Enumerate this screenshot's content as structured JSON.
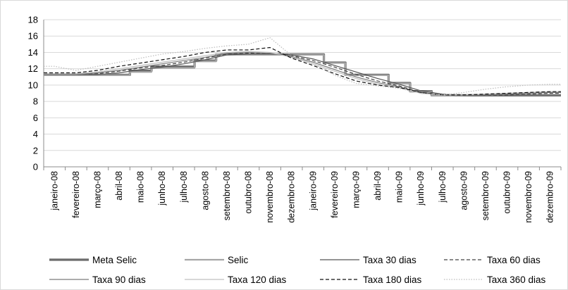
{
  "chart_data": {
    "type": "line",
    "title": "",
    "xlabel": "",
    "ylabel": "",
    "ylim": [
      0,
      18
    ],
    "yticks": [
      "0",
      "2",
      "4",
      "6",
      "8",
      "10",
      "12",
      "14",
      "16",
      "18"
    ],
    "grid": true,
    "legend_position": "bottom",
    "categories": [
      "janeiro-08",
      "fevereiro-08",
      "março-08",
      "abril-08",
      "maio-08",
      "junho-08",
      "julho-08",
      "agosto-08",
      "setembro-08",
      "outubro-08",
      "novembro-08",
      "dezembro-08",
      "janeiro-09",
      "fevereiro-09",
      "março-09",
      "abril-09",
      "maio-09",
      "junho-09",
      "julho-09",
      "agosto-09",
      "setembro-09",
      "outubro-09",
      "novembro-09",
      "dezembro-09"
    ],
    "series": [
      {
        "name": "Meta Selic",
        "color": "#6b6b6b",
        "style": "step",
        "values": [
          11.25,
          11.25,
          11.25,
          11.25,
          11.75,
          12.25,
          12.25,
          13.0,
          13.75,
          13.75,
          13.75,
          13.75,
          13.75,
          12.75,
          11.25,
          11.25,
          10.25,
          9.25,
          8.75,
          8.75,
          8.75,
          8.75,
          8.75,
          8.75
        ]
      },
      {
        "name": "Selic",
        "color": "#a6a6a6",
        "style": "step",
        "values": [
          11.2,
          11.2,
          11.2,
          11.2,
          11.6,
          12.1,
          12.1,
          12.9,
          13.7,
          13.7,
          13.7,
          13.7,
          13.7,
          12.7,
          11.2,
          11.2,
          10.2,
          9.2,
          8.7,
          8.7,
          8.7,
          8.7,
          8.7,
          8.7
        ]
      },
      {
        "name": "Taxa 30 dias",
        "color": "#555555",
        "style": "solid",
        "values": [
          11.3,
          11.3,
          11.3,
          11.5,
          11.9,
          12.2,
          12.6,
          13.1,
          13.7,
          13.8,
          13.8,
          13.7,
          13.2,
          12.4,
          11.6,
          10.8,
          10.1,
          9.3,
          8.9,
          8.7,
          8.7,
          8.7,
          8.7,
          8.7
        ]
      },
      {
        "name": "Taxa 60 dias",
        "color": "#444444",
        "style": "dashed",
        "values": [
          11.3,
          11.3,
          11.4,
          11.7,
          12.1,
          12.4,
          12.8,
          13.3,
          13.8,
          13.9,
          13.9,
          13.6,
          13.0,
          12.2,
          11.3,
          10.5,
          9.9,
          9.1,
          8.8,
          8.7,
          8.8,
          8.8,
          8.9,
          9.0
        ]
      },
      {
        "name": "Taxa 90 dias",
        "color": "#7a7a7a",
        "style": "solid",
        "values": [
          11.3,
          11.3,
          11.5,
          11.8,
          12.2,
          12.6,
          13.0,
          13.4,
          13.9,
          14.0,
          13.9,
          13.5,
          12.8,
          11.9,
          11.0,
          10.3,
          9.8,
          9.0,
          8.8,
          8.7,
          8.8,
          8.9,
          9.0,
          9.1
        ]
      },
      {
        "name": "Taxa 120 dias",
        "color": "#bfbfbf",
        "style": "solid",
        "values": [
          11.4,
          11.4,
          11.6,
          12.0,
          12.4,
          12.8,
          13.2,
          13.6,
          14.0,
          14.1,
          14.0,
          13.4,
          12.6,
          11.7,
          10.8,
          10.1,
          9.7,
          9.0,
          8.8,
          8.8,
          8.9,
          9.0,
          9.1,
          9.2
        ]
      },
      {
        "name": "Taxa 180 dias",
        "color": "#111111",
        "style": "dashed",
        "values": [
          11.5,
          11.5,
          11.8,
          12.3,
          12.7,
          13.1,
          13.5,
          14.0,
          14.3,
          14.3,
          14.6,
          13.3,
          12.4,
          11.4,
          10.5,
          10.0,
          9.7,
          9.1,
          8.8,
          8.8,
          8.9,
          9.0,
          9.1,
          9.2
        ]
      },
      {
        "name": "Taxa 360 dias",
        "color": "#bdbdbd",
        "style": "dotted",
        "values": [
          12.3,
          11.8,
          12.3,
          12.8,
          13.3,
          13.8,
          14.1,
          14.5,
          14.8,
          15.0,
          15.8,
          13.6,
          12.6,
          11.2,
          10.2,
          9.9,
          9.6,
          9.0,
          8.8,
          9.1,
          9.5,
          9.8,
          10.0,
          10.1
        ]
      }
    ]
  }
}
